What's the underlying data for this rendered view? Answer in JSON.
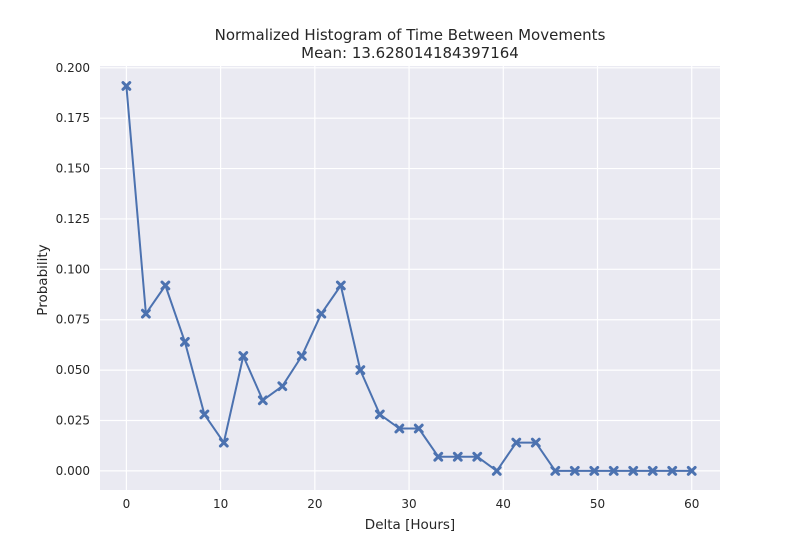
{
  "chart_data": {
    "type": "line",
    "title": "Normalized Histogram of Time Between Movements",
    "subtitle": "Mean: 13.628014184397164",
    "xlabel": "Delta [Hours]",
    "ylabel": "Probability",
    "xlim": [
      -2.8,
      63.0
    ],
    "ylim": [
      -0.0095,
      0.2009
    ],
    "xticks": [
      0,
      10,
      20,
      30,
      40,
      50,
      60
    ],
    "yticks": [
      0.0,
      0.025,
      0.05,
      0.075,
      0.1,
      0.125,
      0.15,
      0.175,
      0.2
    ],
    "ytick_labels": [
      "0.000",
      "0.025",
      "0.050",
      "0.075",
      "0.100",
      "0.125",
      "0.150",
      "0.175",
      "0.200"
    ],
    "grid": true,
    "marker": "x-filled",
    "line_color": "#4c72b0",
    "background_color": "#eaeaf2",
    "x": [
      0,
      2.07,
      4.14,
      6.21,
      8.28,
      10.34,
      12.41,
      14.48,
      16.55,
      18.62,
      20.69,
      22.76,
      24.83,
      26.9,
      28.97,
      31.03,
      33.1,
      35.17,
      37.24,
      39.31,
      41.38,
      43.45,
      45.52,
      47.59,
      49.66,
      51.72,
      53.79,
      55.86,
      57.93,
      60.0
    ],
    "y": [
      0.191,
      0.078,
      0.092,
      0.064,
      0.028,
      0.014,
      0.057,
      0.035,
      0.042,
      0.057,
      0.078,
      0.092,
      0.05,
      0.028,
      0.021,
      0.021,
      0.007,
      0.007,
      0.007,
      0.0,
      0.014,
      0.014,
      0.0,
      0.0,
      0.0,
      0.0,
      0.0,
      0.0,
      0.0,
      0.0
    ]
  }
}
